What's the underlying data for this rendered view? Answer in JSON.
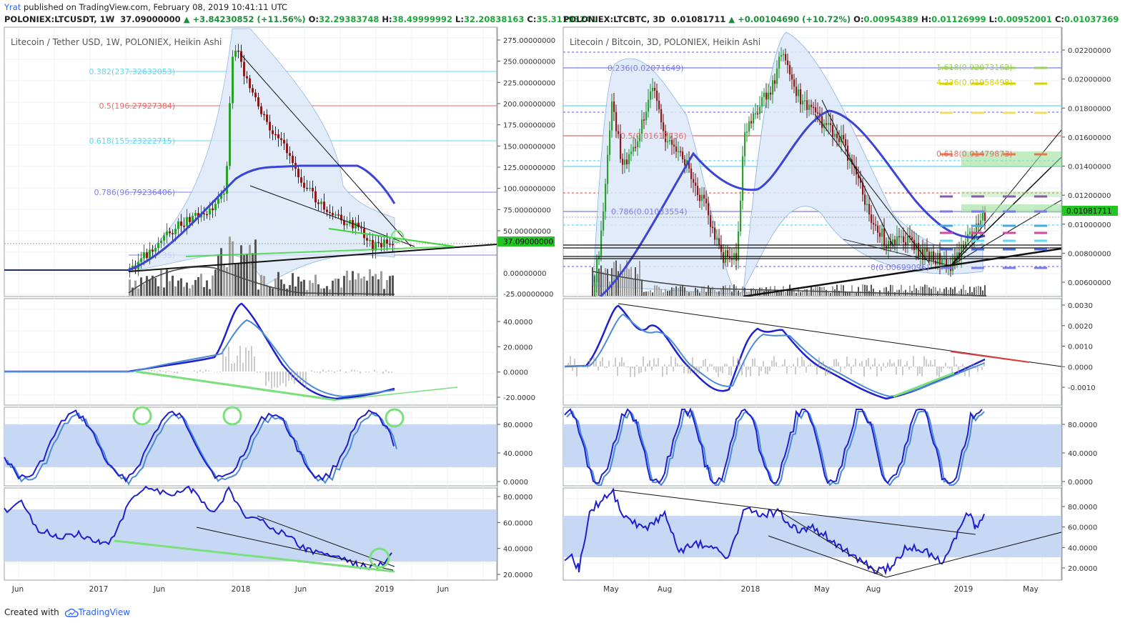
{
  "publish": {
    "user": "Yrat",
    "text": " published on TradingView.com, February 08, 2019 10:41:11 UTC"
  },
  "left": {
    "ticker_line": {
      "symbol": "POLONIEX:LTCUSDT, 1W",
      "price": "37.09000000",
      "change": "▲ +3.84230852 (+11.56%)",
      "o_lbl": "O:",
      "o": "32.29383748",
      "h_lbl": "H:",
      "h": "38.49999992",
      "l_lbl": "L:",
      "l": "32.20838163",
      "c_lbl": "C:",
      "c": "35.31193241"
    },
    "chart_title": "Litecoin / Tether USD, 1W, POLONIEX, Heikin Ashi",
    "price_axis": [
      "275.00000000",
      "250.00000000",
      "225.00000000",
      "200.00000000",
      "175.00000000",
      "150.00000000",
      "125.00000000",
      "100.00000000",
      "75.00000000",
      "50.00000000",
      "0.00000000",
      "-25.00000000"
    ],
    "last_price_tag": "37.09000000",
    "fib_labels": [
      {
        "text": "0.382(237.32632053)",
        "color": "#5fd8f0"
      },
      {
        "text": "0.5(196.27927384)",
        "color": "#e86a6a"
      },
      {
        "text": "0.618(155.23222715)",
        "color": "#5fd8f0"
      },
      {
        "text": "0.786(96.79236406)",
        "color": "#7c7ce6"
      },
      {
        "text": "1(22.35)",
        "color": "#7c7ce6"
      }
    ],
    "macd_axis": [
      "40.0000",
      "20.0000",
      "0.0000",
      "-20.0000"
    ],
    "stoch_axis": [
      "80.0000",
      "40.0000",
      "0.0000"
    ],
    "rsi_axis": [
      "80.0000",
      "60.0000",
      "40.0000",
      "20.0000"
    ],
    "time_axis": [
      "Jun",
      "2017",
      "Jun",
      "2018",
      "Jun",
      "2019",
      "Jun"
    ]
  },
  "right": {
    "ticker_line": {
      "symbol": "POLONIEX:LTCBTC, 3D",
      "price": "0.01081711",
      "change": "▲ +0.00104690 (+10.72%)",
      "o_lbl": "O:",
      "o": "0.00954389",
      "h_lbl": "H:",
      "h": "0.01126999",
      "l_lbl": "L:",
      "l": "0.00952001",
      "c_lbl": "C:",
      "c": "0.01037369"
    },
    "chart_title": "Litecoin / Bitcoin, 3D, POLONIEX, Heikin Ashi",
    "price_axis": [
      "0.02200000",
      "0.02000000",
      "0.01800000",
      "0.01600000",
      "0.01400000",
      "0.01200000",
      "0.01000000",
      "0.00800000",
      "0.00600000"
    ],
    "last_price_tag": "0.01081711",
    "fib_labels": [
      {
        "text": "0.236(0.02071649)",
        "color": "#7c7ce6"
      },
      {
        "text": "0.5(0.01617736)",
        "color": "#e86a6a"
      },
      {
        "text": "0.618(0.01479873)",
        "color": "#e86a6a"
      },
      {
        "text": "0.786(0.01083554)",
        "color": "#7c7ce6"
      },
      {
        "text": "0(0.00699096)",
        "color": "#7c7ce6"
      },
      {
        "text": "1.618(0.02073162)",
        "color": "#9ad05a"
      },
      {
        "text": "4.236(0.01958498)",
        "color": "#d6d400"
      }
    ],
    "macd_axis": [
      "0.0030",
      "0.0020",
      "0.0010",
      "0.0000",
      "-0.0010"
    ],
    "stoch_axis": [
      "80.0000",
      "40.0000",
      "0.0000"
    ],
    "rsi_axis": [
      "80.0000",
      "60.0000",
      "40.0000",
      "20.0000"
    ],
    "time_axis": [
      "May",
      "Aug",
      "2018",
      "May",
      "Aug",
      "2019",
      "May"
    ]
  },
  "footer": {
    "prefix": "Created with ",
    "brand": "TradingView"
  },
  "colors": {
    "up": "#1a8e3a",
    "down": "#8b1a1a",
    "ma": "#3b44d6",
    "band": "#dce8f8",
    "green": "#22c522"
  }
}
